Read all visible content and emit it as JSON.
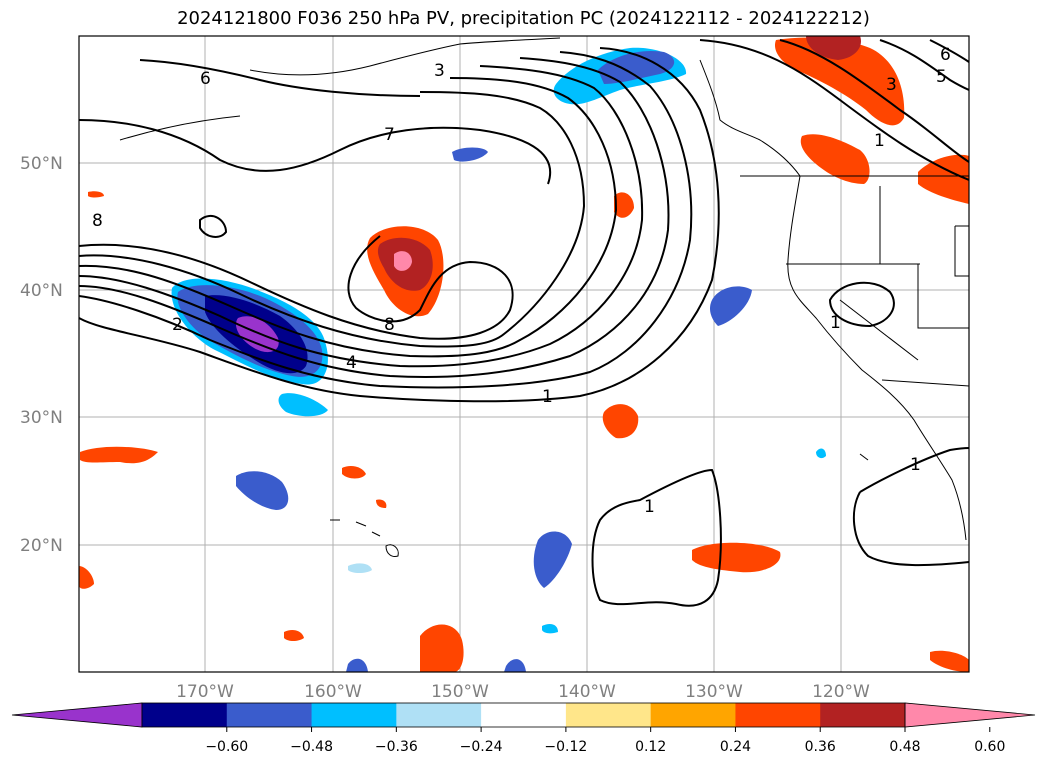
{
  "title": "2024121800 F036 250 hPa PV, precipitation PC (2024122112 - 2024122212)",
  "lat_labels": [
    "50°N",
    "40°N",
    "30°N",
    "20°N"
  ],
  "lon_labels": [
    "170°W",
    "160°W",
    "150°W",
    "140°W",
    "130°W",
    "120°W"
  ],
  "contour_labels": [
    "6",
    "3",
    "7",
    "8",
    "8",
    "2",
    "4",
    "1",
    "1",
    "1",
    "1",
    "1",
    "5",
    "6",
    "3"
  ],
  "colorbar": {
    "colors": [
      "#9933cc",
      "#00008b",
      "#3a5ccc",
      "#00bfff",
      "#afe0f5",
      "#ffffff",
      "#ffe68a",
      "#ffa500",
      "#ff4500",
      "#b22222",
      "#ff88aa"
    ],
    "ticks": [
      "−0.60",
      "−0.48",
      "−0.36",
      "−0.24",
      "−0.12",
      "0.12",
      "0.24",
      "0.36",
      "0.48",
      "0.60"
    ]
  }
}
